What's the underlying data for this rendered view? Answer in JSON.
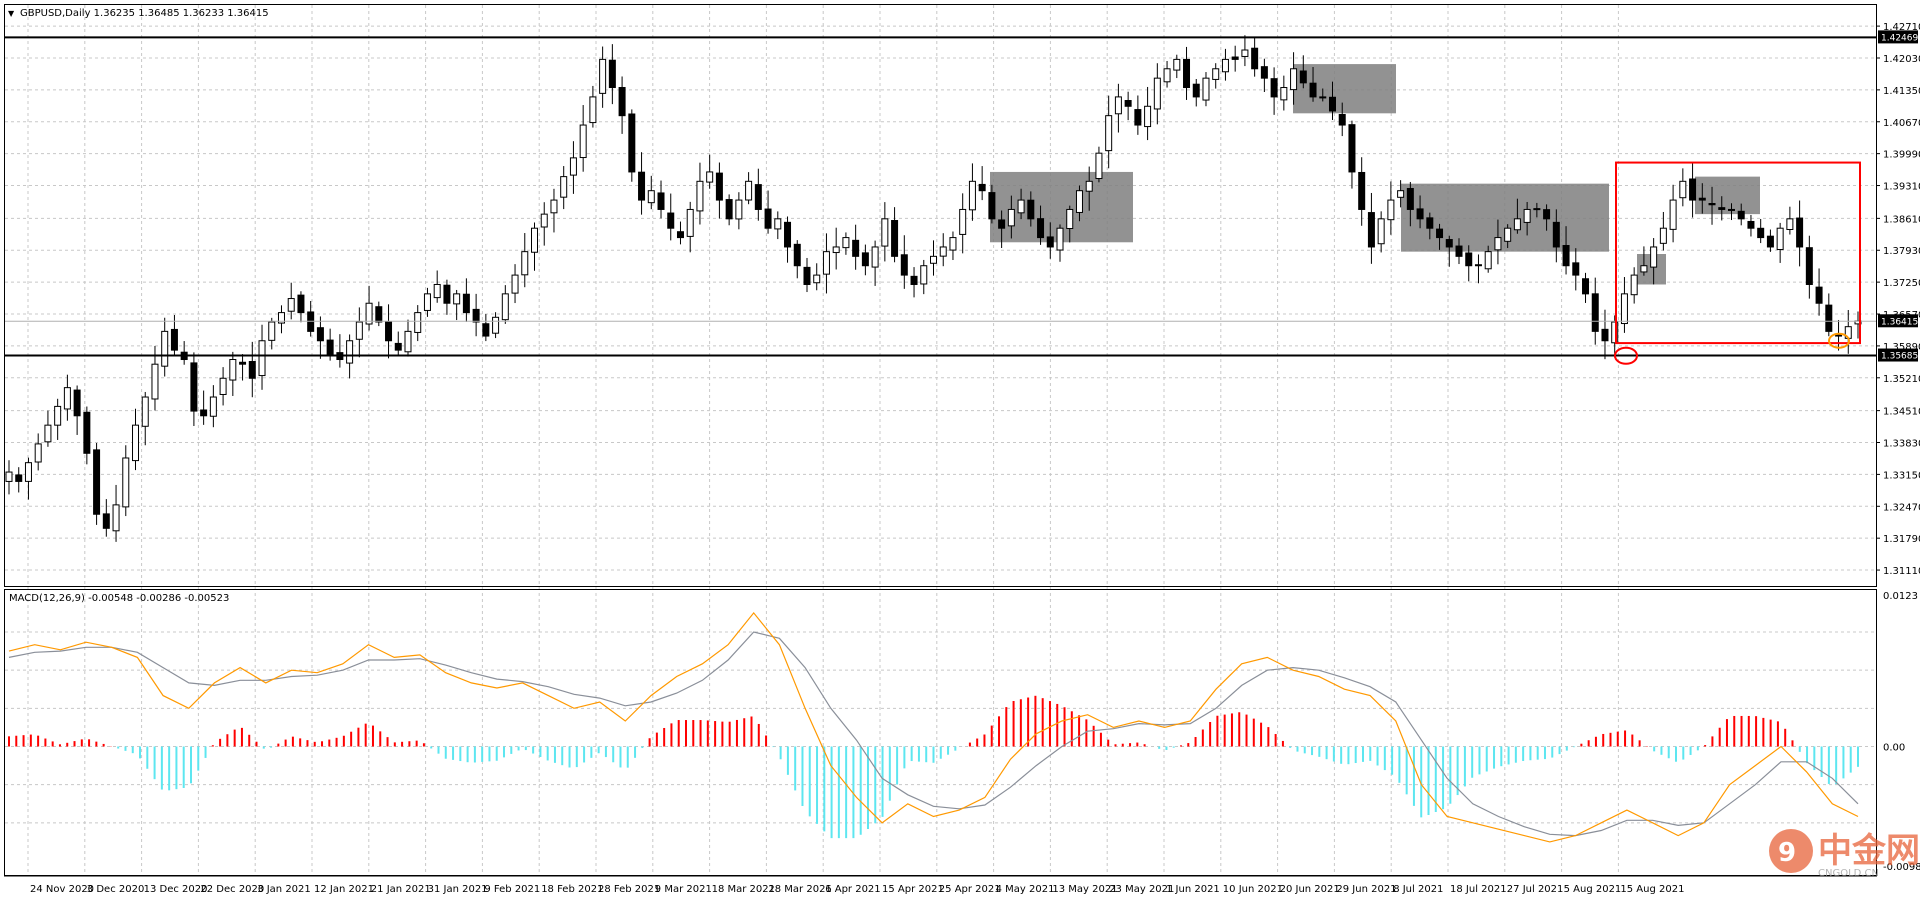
{
  "window": {
    "title": "GBPUSD,Daily  1.36235 1.36485 1.36233 1.36415"
  },
  "indicator": {
    "label": "MACD(12,26,9) -0.00548 -0.00286 -0.00523"
  },
  "watermark": {
    "brand": "中金网",
    "sub": "CNGOLD.CN"
  },
  "colors": {
    "background": "#ffffff",
    "grid": "#c8c8c8",
    "bull": "#ffffff",
    "bear": "#000000",
    "zone": "#7f7f7f",
    "red": "#ff0000",
    "orange": "#ff9900",
    "cyan": "#5de6f0",
    "signal": "#8a8f99"
  },
  "chart_data": [
    {
      "type": "candlestick",
      "symbol": "GBPUSD",
      "timeframe": "Daily",
      "ylim": [
        1.3077,
        1.4316
      ],
      "y_ticks": [
        "1.42710",
        "1.42030",
        "1.41350",
        "1.40670",
        "1.39990",
        "1.39310",
        "1.38610",
        "1.37930",
        "1.37250",
        "1.36570",
        "1.35890",
        "1.35210",
        "1.34510",
        "1.33830",
        "1.33150",
        "1.32470",
        "1.31790",
        "1.31110"
      ],
      "y_tick_values": [
        1.4271,
        1.4203,
        1.4135,
        1.4067,
        1.3999,
        1.3931,
        1.3861,
        1.3793,
        1.3725,
        1.3657,
        1.3589,
        1.3521,
        1.3451,
        1.3383,
        1.3315,
        1.3247,
        1.3179,
        1.3111
      ],
      "x_labels": [
        "24 Nov 2020",
        "3 Dec 2020",
        "13 Dec 2020",
        "22 Dec 2020",
        "3 Jan 2021",
        "12 Jan 2021",
        "21 Jan 2021",
        "31 Jan 2021",
        "9 Feb 2021",
        "18 Feb 2021",
        "28 Feb 2021",
        "9 Mar 2021",
        "18 Mar 2021",
        "28 Mar 2021",
        "6 Apr 2021",
        "15 Apr 2021",
        "25 Apr 2021",
        "4 May 2021",
        "13 May 2021",
        "23 May 2021",
        "1 Jun 2021",
        "10 Jun 2021",
        "20 Jun 2021",
        "29 Jun 2021",
        "8 Jul 2021",
        "18 Jul 2021",
        "27 Jul 2021",
        "5 Aug 2021",
        "15 Aug 2021"
      ],
      "close_path": [
        1.332,
        1.33,
        1.334,
        1.338,
        1.342,
        1.346,
        1.35,
        1.344,
        1.336,
        1.323,
        1.32,
        1.325,
        1.335,
        1.342,
        1.348,
        1.355,
        1.362,
        1.358,
        1.356,
        1.345,
        1.344,
        1.348,
        1.352,
        1.356,
        1.355,
        1.352,
        1.36,
        1.364,
        1.366,
        1.369,
        1.366,
        1.362,
        1.36,
        1.357,
        1.356,
        1.36,
        1.364,
        1.368,
        1.364,
        1.36,
        1.358,
        1.362,
        1.366,
        1.37,
        1.372,
        1.368,
        1.37,
        1.366,
        1.364,
        1.361,
        1.365,
        1.37,
        1.374,
        1.379,
        1.384,
        1.387,
        1.39,
        1.395,
        1.399,
        1.406,
        1.412,
        1.42,
        1.414,
        1.408,
        1.396,
        1.39,
        1.392,
        1.388,
        1.384,
        1.382,
        1.388,
        1.394,
        1.396,
        1.39,
        1.386,
        1.39,
        1.394,
        1.388,
        1.384,
        1.386,
        1.38,
        1.376,
        1.372,
        1.374,
        1.379,
        1.38,
        1.382,
        1.378,
        1.376,
        1.38,
        1.386,
        1.378,
        1.374,
        1.372,
        1.376,
        1.378,
        1.38,
        1.382,
        1.388,
        1.394,
        1.392,
        1.386,
        1.384,
        1.388,
        1.39,
        1.386,
        1.382,
        1.38,
        1.384,
        1.388,
        1.392,
        1.394,
        1.4,
        1.408,
        1.412,
        1.41,
        1.406,
        1.41,
        1.416,
        1.418,
        1.42,
        1.414,
        1.412,
        1.416,
        1.418,
        1.42,
        1.42,
        1.422,
        1.418,
        1.416,
        1.412,
        1.414,
        1.418,
        1.415,
        1.412,
        1.412,
        1.409,
        1.406,
        1.396,
        1.388,
        1.38,
        1.386,
        1.39,
        1.392,
        1.388,
        1.386,
        1.384,
        1.382,
        1.38,
        1.378,
        1.376,
        1.376,
        1.379,
        1.382,
        1.384,
        1.386,
        1.388,
        1.388,
        1.386,
        1.38,
        1.376,
        1.374,
        1.37,
        1.362,
        1.36,
        1.364,
        1.37,
        1.374,
        1.376,
        1.38,
        1.384,
        1.39,
        1.394,
        1.39,
        1.39,
        1.389,
        1.388,
        1.388,
        1.386,
        1.384,
        1.382,
        1.38,
        1.384,
        1.386,
        1.38,
        1.372,
        1.368,
        1.362,
        1.361,
        1.363,
        1.3642
      ],
      "annotations": {
        "resistance": 1.42469,
        "support": 1.35685,
        "current_price": 1.36415,
        "resistance_label": "1.42469",
        "support_label": "1.35685",
        "current_label": "1.36415",
        "consolidation_zones": [
          {
            "from": "15 Apr 2021",
            "to": "4 May 2021",
            "low": 1.381,
            "high": 1.396
          },
          {
            "from": "1 Jun 2021",
            "to": "10 Jun 2021",
            "low": 1.4085,
            "high": 1.419
          },
          {
            "from": "20 Jun 2021",
            "to": "8 Jul 2021",
            "low": 1.379,
            "high": 1.3935
          },
          {
            "from": "18 Jul 2021",
            "to": "27 Jul 2021",
            "low": 1.372,
            "high": 1.3785
          },
          {
            "from": "27 Jul 2021",
            "to": "5 Aug 2021",
            "low": 1.387,
            "high": 1.395
          }
        ],
        "range_box": {
          "from": "18 Jul 2021",
          "to": "15 Aug 2021",
          "low": 1.3595,
          "high": 1.398
        },
        "circle_low": 1.3568,
        "circle_current": 1.36
      }
    },
    {
      "type": "macd",
      "params": [
        12,
        26,
        9
      ],
      "ylim": [
        -0.0101,
        0.0123
      ],
      "y_ticks": [
        "0.0123",
        "0.00",
        "-0.00988"
      ],
      "y_tick_values": [
        0.0123,
        0.0,
        -0.00988
      ],
      "macd_path": [
        0.0075,
        0.008,
        0.0076,
        0.0082,
        0.0078,
        0.007,
        0.004,
        0.003,
        0.005,
        0.0062,
        0.005,
        0.006,
        0.0058,
        0.0065,
        0.008,
        0.007,
        0.0072,
        0.0058,
        0.005,
        0.0046,
        0.005,
        0.004,
        0.003,
        0.0035,
        0.002,
        0.004,
        0.0055,
        0.0065,
        0.008,
        0.0105,
        0.008,
        0.003,
        -0.0015,
        -0.004,
        -0.006,
        -0.0045,
        -0.0055,
        -0.005,
        -0.004,
        -0.001,
        0.001,
        0.002,
        0.0025,
        0.0015,
        0.002,
        0.0015,
        0.002,
        0.0045,
        0.0065,
        0.007,
        0.006,
        0.0055,
        0.0045,
        0.004,
        0.002,
        -0.003,
        -0.0055,
        -0.006,
        -0.0065,
        -0.007,
        -0.0075,
        -0.007,
        -0.006,
        -0.005,
        -0.006,
        -0.007,
        -0.006,
        -0.003,
        -0.0015,
        0.0,
        -0.002,
        -0.0045,
        -0.0055
      ],
      "signal_path": [
        0.007,
        0.0074,
        0.0075,
        0.0078,
        0.0078,
        0.0074,
        0.0062,
        0.005,
        0.0048,
        0.0052,
        0.0052,
        0.0055,
        0.0056,
        0.006,
        0.0068,
        0.0068,
        0.0069,
        0.0064,
        0.0058,
        0.0053,
        0.0051,
        0.0047,
        0.0041,
        0.0038,
        0.0032,
        0.0035,
        0.0042,
        0.0052,
        0.0068,
        0.009,
        0.0085,
        0.0062,
        0.003,
        0.0005,
        -0.0025,
        -0.0038,
        -0.0047,
        -0.0049,
        -0.0046,
        -0.0032,
        -0.0015,
        0.0,
        0.0012,
        0.0014,
        0.0018,
        0.0017,
        0.0018,
        0.003,
        0.0048,
        0.006,
        0.0062,
        0.006,
        0.0054,
        0.0047,
        0.0035,
        0.0005,
        -0.0025,
        -0.0045,
        -0.0055,
        -0.0063,
        -0.0069,
        -0.007,
        -0.0066,
        -0.0058,
        -0.0058,
        -0.0062,
        -0.006,
        -0.0045,
        -0.003,
        -0.0012,
        -0.0012,
        -0.0025,
        -0.0045
      ]
    }
  ]
}
